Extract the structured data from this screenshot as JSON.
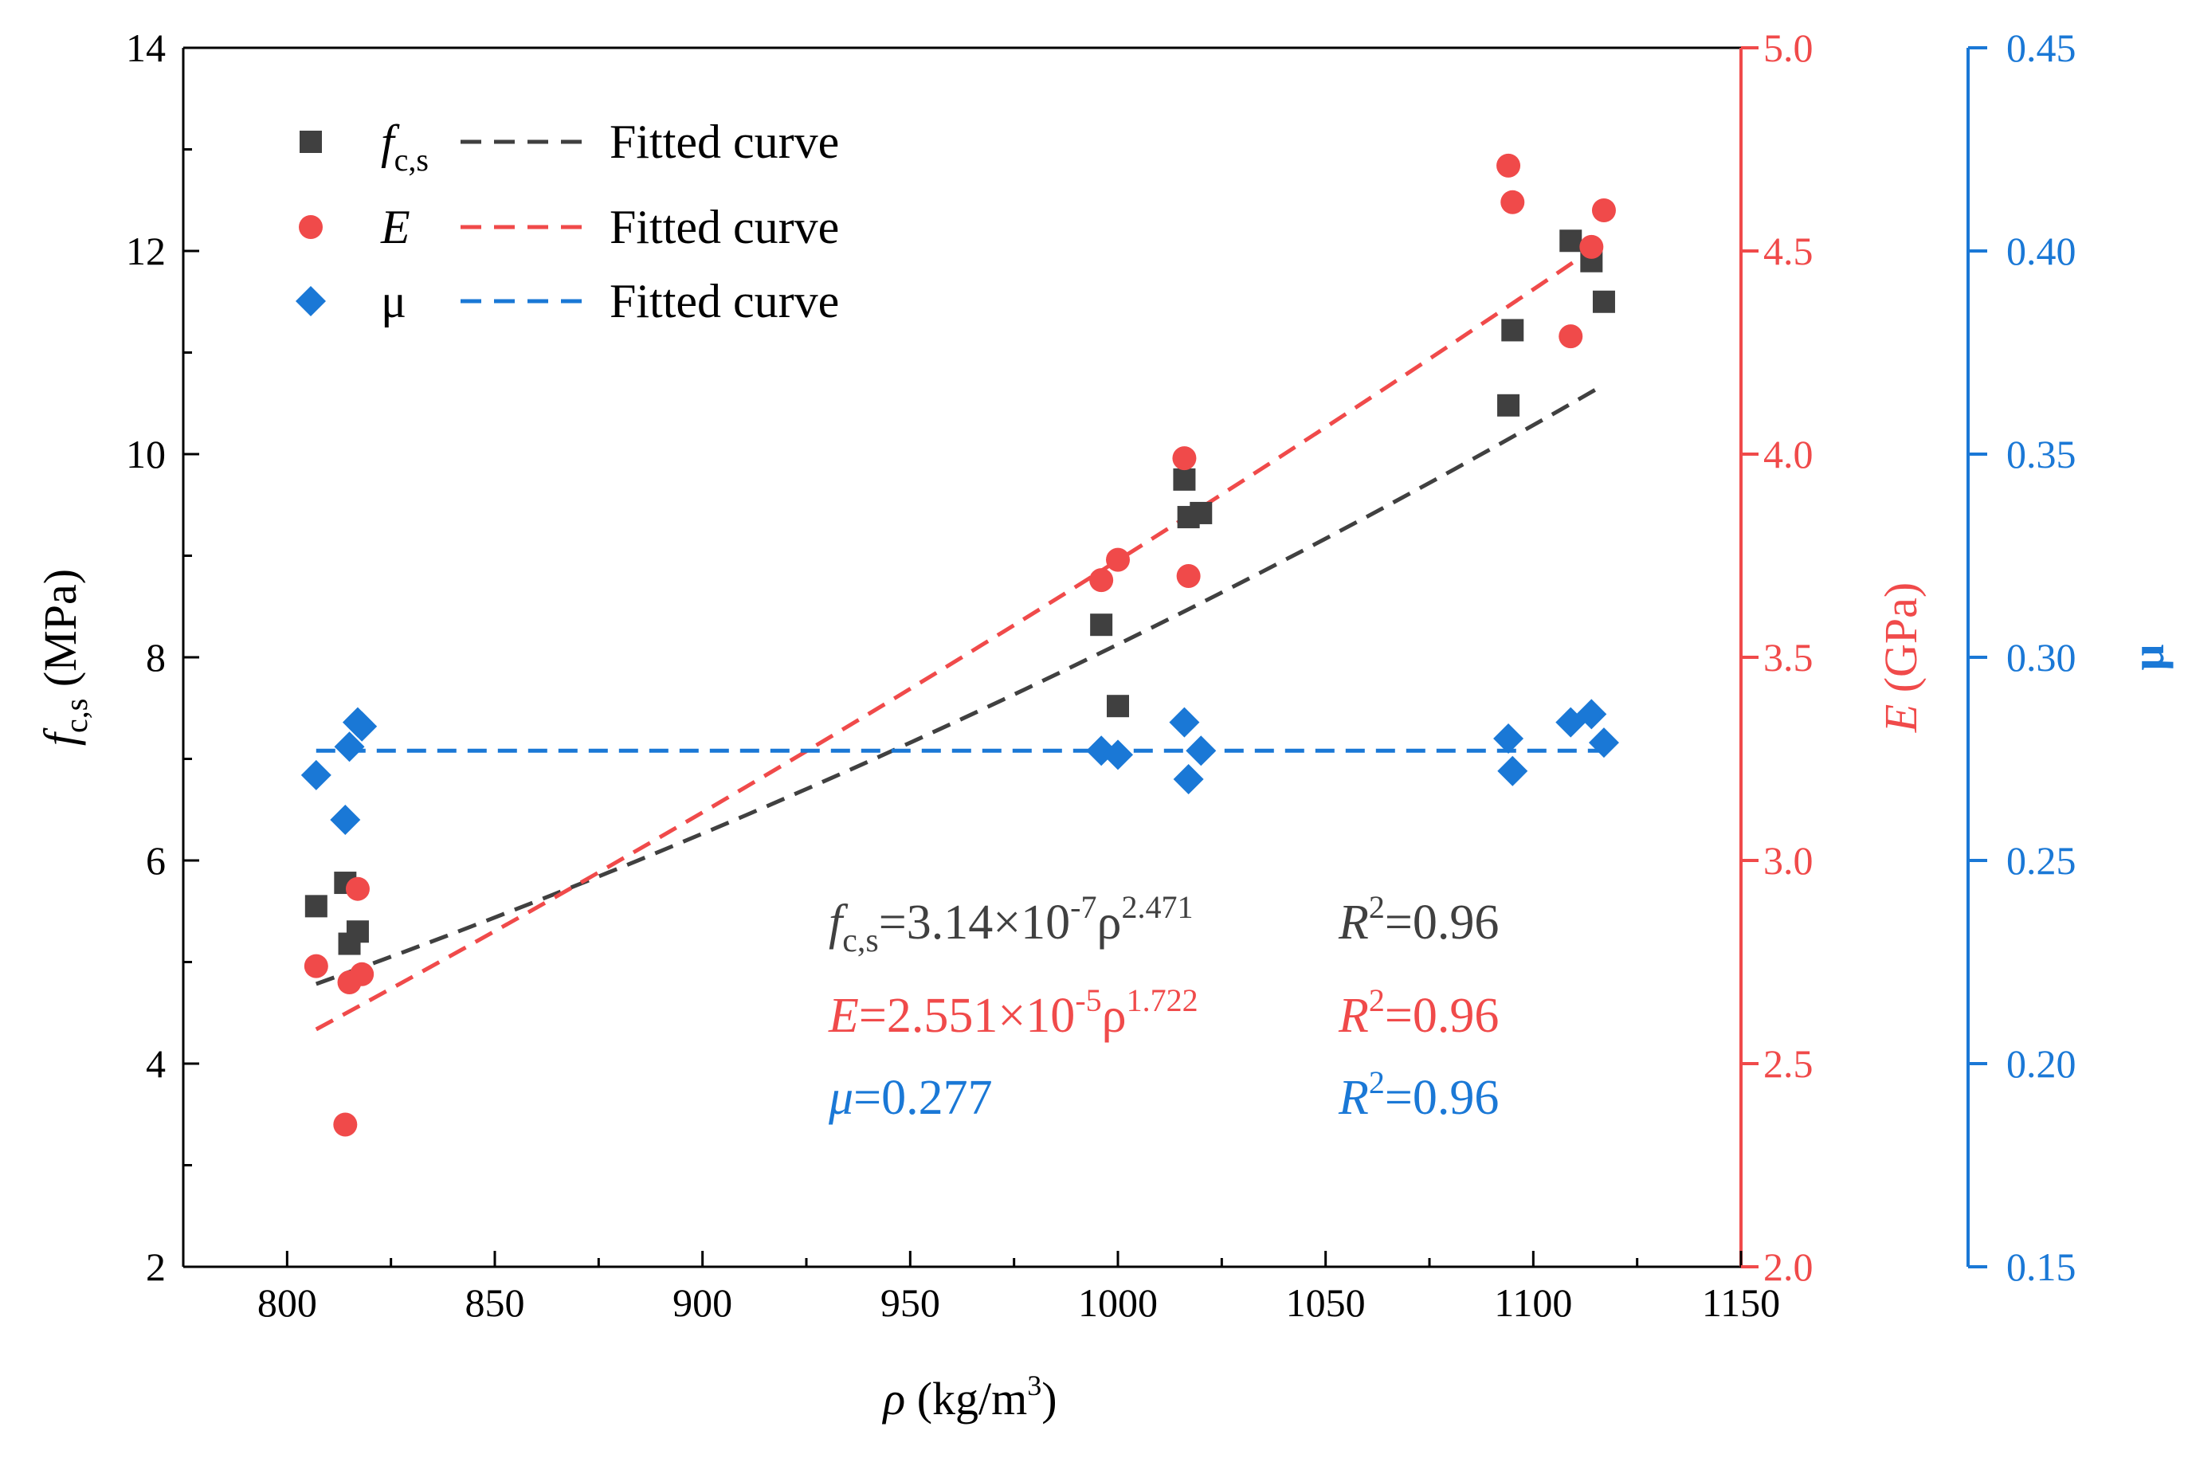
{
  "chart_data": {
    "type": "scatter",
    "xlabel": "ρ (kg/m³)",
    "xlabel_parts": {
      "var": "ρ",
      "unit": " (kg/m",
      "sup": "3",
      "close": ")"
    },
    "xlim": [
      775,
      1150
    ],
    "x_ticks": [
      800,
      850,
      900,
      950,
      1000,
      1050,
      1100,
      1150
    ],
    "axes": {
      "left": {
        "label_var": "f",
        "label_sub": "c,s",
        "label_unit": " (MPa)",
        "ylim": [
          2,
          14
        ],
        "ticks": [
          2,
          4,
          6,
          8,
          10,
          12,
          14
        ],
        "tick_labels": [
          "2",
          "4",
          "6",
          "8",
          "10",
          "12",
          "14"
        ],
        "color": "#000000"
      },
      "right1": {
        "label_var": "E",
        "label_unit": " (GPa)",
        "ylim": [
          2.0,
          5.0
        ],
        "ticks": [
          2.0,
          2.5,
          3.0,
          3.5,
          4.0,
          4.5,
          5.0
        ],
        "tick_labels": [
          "2.0",
          "2.5",
          "3.0",
          "3.5",
          "4.0",
          "4.5",
          "5.0"
        ],
        "color": "#f04a4a"
      },
      "right2": {
        "label_var": "μ",
        "ylim": [
          0.15,
          0.45
        ],
        "ticks": [
          0.15,
          0.2,
          0.25,
          0.3,
          0.35,
          0.4,
          0.45
        ],
        "tick_labels": [
          "0.15",
          "0.20",
          "0.25",
          "0.30",
          "0.35",
          "0.40",
          "0.45"
        ],
        "color": "#1a78d6"
      }
    },
    "series": [
      {
        "name": "f_c,s",
        "axis": "left",
        "marker": "square",
        "color": "#404040",
        "x": [
          807,
          814,
          815,
          817,
          996,
          1000,
          1016,
          1017,
          1020,
          1094,
          1095,
          1109,
          1114,
          1117
        ],
        "y": [
          5.55,
          5.78,
          5.18,
          5.3,
          8.32,
          7.52,
          9.75,
          9.38,
          9.42,
          10.48,
          11.22,
          12.1,
          11.9,
          11.5
        ]
      },
      {
        "name": "E",
        "axis": "right1",
        "marker": "circle",
        "color": "#f04a4a",
        "x": [
          807,
          814,
          815,
          817,
          818,
          996,
          1000,
          1016,
          1017,
          1094,
          1095,
          1109,
          1114,
          1117
        ],
        "y": [
          2.74,
          2.35,
          2.7,
          2.93,
          2.72,
          3.69,
          3.74,
          3.99,
          3.7,
          4.71,
          4.62,
          4.29,
          4.51,
          4.6
        ]
      },
      {
        "name": "μ",
        "axis": "right2",
        "marker": "diamond",
        "color": "#1a78d6",
        "x": [
          807,
          814,
          815,
          817,
          818,
          996,
          1000,
          1016,
          1017,
          1020,
          1094,
          1095,
          1109,
          1114,
          1117
        ],
        "y": [
          0.271,
          0.26,
          0.278,
          0.284,
          0.283,
          0.277,
          0.276,
          0.284,
          0.27,
          0.277,
          0.28,
          0.272,
          0.284,
          0.286,
          0.279
        ]
      }
    ],
    "fits": [
      {
        "series": "f_c,s",
        "axis": "left",
        "type": "power",
        "a": 3.14e-07,
        "b": 2.471,
        "x_range": [
          807,
          1117
        ],
        "color": "#404040"
      },
      {
        "series": "E",
        "axis": "right1",
        "type": "power",
        "a": 2.551e-05,
        "b": 1.722,
        "x_range": [
          807,
          1117
        ],
        "color": "#f04a4a"
      },
      {
        "series": "μ",
        "axis": "right2",
        "type": "constant",
        "value": 0.277,
        "x_range": [
          807,
          1117
        ],
        "color": "#1a78d6"
      }
    ],
    "legend": {
      "placement": "top-left",
      "fit_label": "Fitted curve",
      "entries": [
        {
          "marker": "square",
          "color": "#404040",
          "var": "f",
          "sub": "c,s",
          "italic": true
        },
        {
          "marker": "circle",
          "color": "#f04a4a",
          "var": "E",
          "sub": "",
          "italic": true
        },
        {
          "marker": "diamond",
          "color": "#1a78d6",
          "var": "μ",
          "sub": "",
          "italic": false
        }
      ]
    },
    "annotations": [
      {
        "color": "#404040",
        "lhs_var": "f",
        "lhs_sub": "c,s",
        "rhs": "=3.14×10",
        "exp": "-7",
        "base": "ρ",
        "pow": "2.471",
        "r2": "=0.96"
      },
      {
        "color": "#f04a4a",
        "lhs_var": "E",
        "lhs_sub": "",
        "rhs": "=2.551×10",
        "exp": "-5",
        "base": "ρ",
        "pow": "1.722",
        "r2": "=0.96"
      },
      {
        "color": "#1a78d6",
        "lhs_var": "μ",
        "lhs_sub": "",
        "rhs": "=0.277",
        "exp": "",
        "base": "",
        "pow": "",
        "r2": "=0.96"
      }
    ],
    "r2_label": "R",
    "r2_sup": "2"
  }
}
